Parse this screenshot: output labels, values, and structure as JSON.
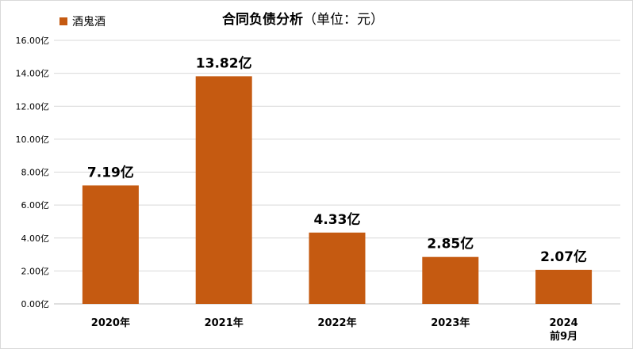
{
  "chart_data": {
    "type": "bar",
    "title": "合同负债分析",
    "subtitle": "（单位：元）",
    "categories": [
      [
        "2020年"
      ],
      [
        "2021年"
      ],
      [
        "2022年"
      ],
      [
        "2023年"
      ],
      [
        "2024",
        "前9月"
      ]
    ],
    "series": [
      {
        "name": "酒鬼酒",
        "values": [
          7.19,
          13.82,
          4.33,
          2.85,
          2.07
        ],
        "data_labels": [
          "7.19亿",
          "13.82亿",
          "4.33亿",
          "2.85亿",
          "2.07亿"
        ]
      }
    ],
    "y_ticks": [
      "0.00亿",
      "2.00亿",
      "4.00亿",
      "6.00亿",
      "8.00亿",
      "10.00亿",
      "12.00亿",
      "14.00亿",
      "16.00亿"
    ],
    "ylim": [
      0,
      16
    ],
    "grid": true,
    "legend_position": "top-left",
    "colors": {
      "bar": "#c55a11",
      "grid": "#d9d9d9"
    }
  }
}
